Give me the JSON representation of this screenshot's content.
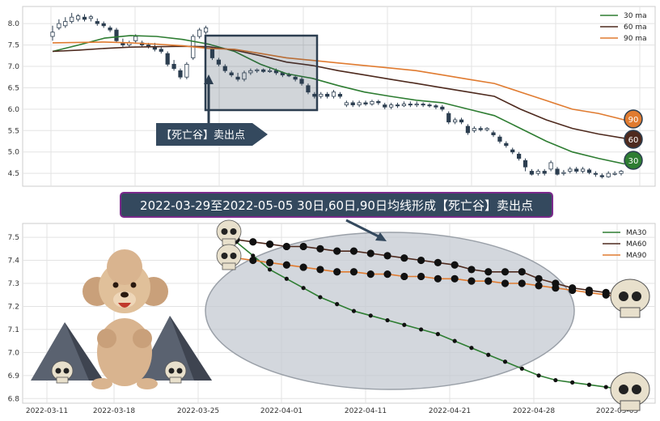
{
  "top_chart": {
    "yticks": [
      "8.0",
      "7.5",
      "7.0",
      "6.5",
      "6.0",
      "5.5",
      "5.0",
      "4.5"
    ],
    "legend": [
      {
        "label": "30 ma",
        "color": "#2e7d32"
      },
      {
        "label": "60 ma",
        "color": "#4e2a1e"
      },
      {
        "label": "90 ma",
        "color": "#e07b30"
      }
    ],
    "badges": [
      {
        "label": "90",
        "color": "#e07b30",
        "value": 5.75
      },
      {
        "label": "60",
        "color": "#4e2a1e",
        "value": 5.32
      },
      {
        "label": "30",
        "color": "#2e7d32",
        "value": 4.72
      }
    ],
    "sell_label": "【死亡谷】卖出点"
  },
  "banner": {
    "text": "2022-03-29至2022-05-05 30日,60日,90日均线形成【死亡谷】卖出点"
  },
  "bottom_chart": {
    "yticks": [
      "7.5",
      "7.4",
      "7.3",
      "7.2",
      "7.1",
      "7.0",
      "6.9",
      "6.8"
    ],
    "xticks": [
      "2022-03-11",
      "2022-03-18",
      "2022-03-25",
      "2022-04-01",
      "2022-04-11",
      "2022-04-21",
      "2022-04-28",
      "2022-05-05"
    ],
    "legend": [
      {
        "label": "MA30",
        "color": "#2e7d32"
      },
      {
        "label": "MA60",
        "color": "#4e2a1e"
      },
      {
        "label": "MA90",
        "color": "#e07b30"
      }
    ]
  },
  "chart_data": [
    {
      "type": "candlestick",
      "ylim": [
        4.2,
        8.4
      ],
      "candles": [
        [
          7.7,
          7.8,
          7.6,
          7.95
        ],
        [
          7.9,
          8.0,
          7.85,
          8.1
        ],
        [
          7.95,
          8.05,
          7.9,
          8.15
        ],
        [
          8.05,
          8.15,
          8.0,
          8.25
        ],
        [
          8.1,
          8.18,
          8.05,
          8.22
        ],
        [
          8.15,
          8.1,
          8.05,
          8.22
        ],
        [
          8.12,
          8.16,
          8.05,
          8.2
        ],
        [
          8.05,
          8.0,
          7.95,
          8.12
        ],
        [
          8.0,
          7.95,
          7.9,
          8.05
        ],
        [
          7.9,
          7.85,
          7.8,
          7.95
        ],
        [
          7.85,
          7.6,
          7.55,
          7.9
        ],
        [
          7.55,
          7.5,
          7.45,
          7.65
        ],
        [
          7.5,
          7.55,
          7.45,
          7.6
        ],
        [
          7.6,
          7.7,
          7.55,
          7.75
        ],
        [
          7.55,
          7.5,
          7.45,
          7.6
        ],
        [
          7.5,
          7.48,
          7.42,
          7.55
        ],
        [
          7.45,
          7.4,
          7.35,
          7.55
        ],
        [
          7.4,
          7.35,
          7.3,
          7.45
        ],
        [
          7.3,
          7.05,
          7.0,
          7.35
        ],
        [
          7.05,
          6.95,
          6.9,
          7.15
        ],
        [
          6.9,
          6.75,
          6.7,
          6.95
        ],
        [
          6.75,
          7.05,
          6.7,
          7.1
        ],
        [
          7.2,
          7.7,
          7.15,
          7.75
        ],
        [
          7.7,
          7.85,
          7.65,
          7.9
        ],
        [
          7.8,
          7.9,
          7.75,
          7.95
        ],
        [
          7.4,
          7.2,
          7.15,
          7.45
        ],
        [
          7.15,
          7.05,
          7.0,
          7.2
        ],
        [
          7.0,
          6.9,
          6.85,
          7.05
        ],
        [
          6.85,
          6.8,
          6.75,
          6.9
        ],
        [
          6.75,
          6.7,
          6.65,
          6.85
        ],
        [
          6.7,
          6.85,
          6.65,
          6.9
        ],
        [
          6.85,
          6.9,
          6.8,
          6.95
        ],
        [
          6.9,
          6.92,
          6.85,
          6.95
        ],
        [
          6.92,
          6.88,
          6.85,
          6.95
        ],
        [
          6.88,
          6.9,
          6.85,
          6.95
        ],
        [
          6.9,
          6.85,
          6.8,
          6.95
        ],
        [
          6.85,
          6.8,
          6.75,
          6.88
        ],
        [
          6.8,
          6.78,
          6.75,
          6.85
        ],
        [
          6.75,
          6.7,
          6.65,
          6.8
        ],
        [
          6.7,
          6.6,
          6.55,
          6.75
        ],
        [
          6.55,
          6.4,
          6.35,
          6.6
        ],
        [
          6.35,
          6.3,
          6.25,
          6.4
        ],
        [
          6.3,
          6.35,
          6.25,
          6.4
        ],
        [
          6.35,
          6.3,
          6.25,
          6.4
        ],
        [
          6.3,
          6.4,
          6.25,
          6.45
        ],
        [
          6.35,
          6.3,
          6.25,
          6.4
        ],
        [
          6.1,
          6.15,
          6.05,
          6.2
        ],
        [
          6.15,
          6.1,
          6.05,
          6.2
        ],
        [
          6.1,
          6.15,
          6.05,
          6.2
        ],
        [
          6.15,
          6.12,
          6.08,
          6.2
        ],
        [
          6.12,
          6.18,
          6.08,
          6.22
        ],
        [
          6.18,
          6.15,
          6.1,
          6.22
        ],
        [
          6.1,
          6.05,
          6.0,
          6.15
        ],
        [
          6.05,
          6.1,
          6.0,
          6.15
        ],
        [
          6.1,
          6.08,
          6.03,
          6.15
        ],
        [
          6.08,
          6.12,
          6.05,
          6.18
        ],
        [
          6.12,
          6.1,
          6.05,
          6.18
        ],
        [
          6.1,
          6.12,
          6.05,
          6.18
        ],
        [
          6.12,
          6.1,
          6.05,
          6.16
        ],
        [
          6.1,
          6.08,
          6.04,
          6.14
        ],
        [
          6.08,
          6.05,
          6.0,
          6.12
        ],
        [
          6.05,
          6.0,
          5.95,
          6.1
        ],
        [
          5.9,
          5.7,
          5.65,
          5.95
        ],
        [
          5.7,
          5.75,
          5.65,
          5.8
        ],
        [
          5.75,
          5.7,
          5.65,
          5.8
        ],
        [
          5.6,
          5.45,
          5.4,
          5.65
        ],
        [
          5.5,
          5.55,
          5.45,
          5.6
        ],
        [
          5.55,
          5.52,
          5.48,
          5.6
        ],
        [
          5.52,
          5.55,
          5.48,
          5.58
        ],
        [
          5.45,
          5.4,
          5.35,
          5.5
        ],
        [
          5.35,
          5.25,
          5.2,
          5.4
        ],
        [
          5.2,
          5.15,
          5.1,
          5.25
        ],
        [
          5.05,
          5.0,
          4.95,
          5.1
        ],
        [
          4.95,
          4.85,
          4.8,
          5.0
        ],
        [
          4.8,
          4.65,
          4.55,
          4.85
        ],
        [
          4.55,
          4.48,
          4.45,
          4.6
        ],
        [
          4.5,
          4.55,
          4.45,
          4.6
        ],
        [
          4.55,
          4.5,
          4.45,
          4.6
        ],
        [
          4.6,
          4.75,
          4.55,
          4.8
        ],
        [
          4.6,
          4.48,
          4.45,
          4.65
        ],
        [
          4.5,
          4.52,
          4.45,
          4.58
        ],
        [
          4.55,
          4.6,
          4.5,
          4.65
        ],
        [
          4.6,
          4.55,
          4.5,
          4.65
        ],
        [
          4.55,
          4.6,
          4.5,
          4.65
        ],
        [
          4.58,
          4.52,
          4.48,
          4.62
        ],
        [
          4.5,
          4.48,
          4.42,
          4.55
        ],
        [
          4.45,
          4.42,
          4.38,
          4.5
        ],
        [
          4.42,
          4.5,
          4.4,
          4.55
        ],
        [
          4.48,
          4.5,
          4.45,
          4.55
        ],
        [
          4.5,
          4.55,
          4.45,
          4.58
        ]
      ],
      "series": [
        {
          "name": "30 ma",
          "values": [
            7.35,
            7.5,
            7.66,
            7.72,
            7.7,
            7.63,
            7.52,
            7.35,
            7.05,
            6.83,
            6.72,
            6.55,
            6.4,
            6.3,
            6.21,
            6.15,
            6.0,
            5.85,
            5.55,
            5.25,
            5.0,
            4.85,
            4.72
          ]
        },
        {
          "name": "60 ma",
          "values": [
            7.35,
            7.38,
            7.42,
            7.45,
            7.46,
            7.47,
            7.46,
            7.38,
            7.25,
            7.1,
            7.02,
            6.9,
            6.8,
            6.7,
            6.6,
            6.5,
            6.4,
            6.3,
            6.0,
            5.75,
            5.55,
            5.42,
            5.32
          ]
        },
        {
          "name": "90 ma",
          "values": [
            7.55,
            7.56,
            7.57,
            7.55,
            7.52,
            7.48,
            7.42,
            7.4,
            7.3,
            7.2,
            7.14,
            7.08,
            7.02,
            6.96,
            6.9,
            6.8,
            6.7,
            6.6,
            6.4,
            6.2,
            6.0,
            5.9,
            5.75
          ]
        }
      ]
    },
    {
      "type": "line",
      "ylim": [
        6.78,
        7.56
      ],
      "series": [
        {
          "name": "MA30",
          "values": [
            7.48,
            7.42,
            7.36,
            7.32,
            7.28,
            7.24,
            7.21,
            7.18,
            7.16,
            7.14,
            7.12,
            7.1,
            7.08,
            7.05,
            7.02,
            6.99,
            6.96,
            6.93,
            6.9,
            6.88,
            6.87,
            6.86,
            6.85,
            6.84
          ]
        },
        {
          "name": "MA60",
          "values": [
            7.49,
            7.48,
            7.47,
            7.46,
            7.46,
            7.45,
            7.44,
            7.44,
            7.43,
            7.42,
            7.41,
            7.4,
            7.39,
            7.38,
            7.36,
            7.35,
            7.35,
            7.35,
            7.32,
            7.3,
            7.28,
            7.27,
            7.26,
            7.25
          ]
        },
        {
          "name": "MA90",
          "values": [
            7.41,
            7.4,
            7.39,
            7.38,
            7.37,
            7.36,
            7.35,
            7.35,
            7.34,
            7.34,
            7.33,
            7.33,
            7.32,
            7.32,
            7.31,
            7.31,
            7.3,
            7.3,
            7.29,
            7.28,
            7.27,
            7.26,
            7.25,
            7.24
          ]
        }
      ]
    }
  ]
}
